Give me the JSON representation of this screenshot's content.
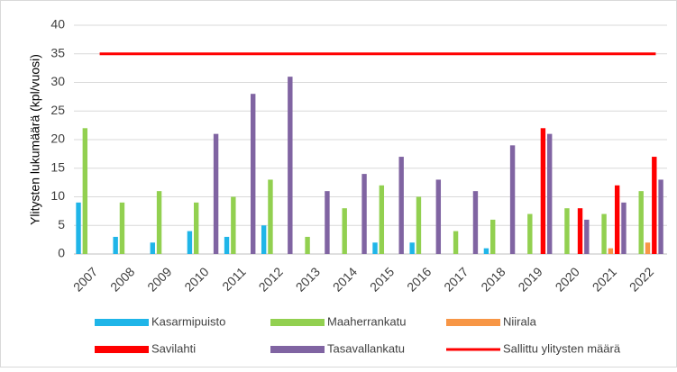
{
  "chart_data": {
    "type": "bar",
    "y_label": "Ylitysten lukumäärä (kpl/vuosi)",
    "categories": [
      "2007",
      "2008",
      "2009",
      "2010",
      "2011",
      "2012",
      "2013",
      "2014",
      "2015",
      "2016",
      "2017",
      "2018",
      "2019",
      "2020",
      "2021",
      "2022"
    ],
    "series": [
      {
        "name": "Kasarmipuisto",
        "color": "#1fb5e8",
        "values": [
          9,
          3,
          2,
          4,
          3,
          5,
          null,
          null,
          2,
          2,
          null,
          1,
          null,
          null,
          null,
          null
        ]
      },
      {
        "name": "Maaherrankatu",
        "color": "#92d050",
        "values": [
          22,
          9,
          11,
          9,
          10,
          13,
          3,
          8,
          12,
          10,
          4,
          6,
          7,
          8,
          7,
          11
        ]
      },
      {
        "name": "Niirala",
        "color": "#f79646",
        "values": [
          null,
          null,
          null,
          null,
          null,
          null,
          null,
          null,
          null,
          null,
          null,
          null,
          null,
          null,
          1,
          2
        ]
      },
      {
        "name": "Savilahti",
        "color": "#ff0000",
        "values": [
          null,
          null,
          null,
          null,
          null,
          null,
          null,
          null,
          null,
          null,
          null,
          null,
          22,
          8,
          12,
          17
        ]
      },
      {
        "name": "Tasavallankatu",
        "color": "#8064a2",
        "values": [
          null,
          null,
          null,
          21,
          28,
          31,
          11,
          14,
          17,
          13,
          11,
          19,
          21,
          6,
          9,
          13
        ]
      },
      {
        "name": "Sallittu ylitysten määrä",
        "color": "#ff0000",
        "type": "line",
        "values": [
          35,
          35,
          35,
          35,
          35,
          35,
          35,
          35,
          35,
          35,
          35,
          35,
          35,
          35,
          35,
          35
        ]
      }
    ],
    "ylim": [
      0,
      40
    ],
    "yticks": [
      0,
      5,
      10,
      15,
      20,
      25,
      30,
      35,
      40
    ],
    "grid": true,
    "legend": "bottom"
  }
}
